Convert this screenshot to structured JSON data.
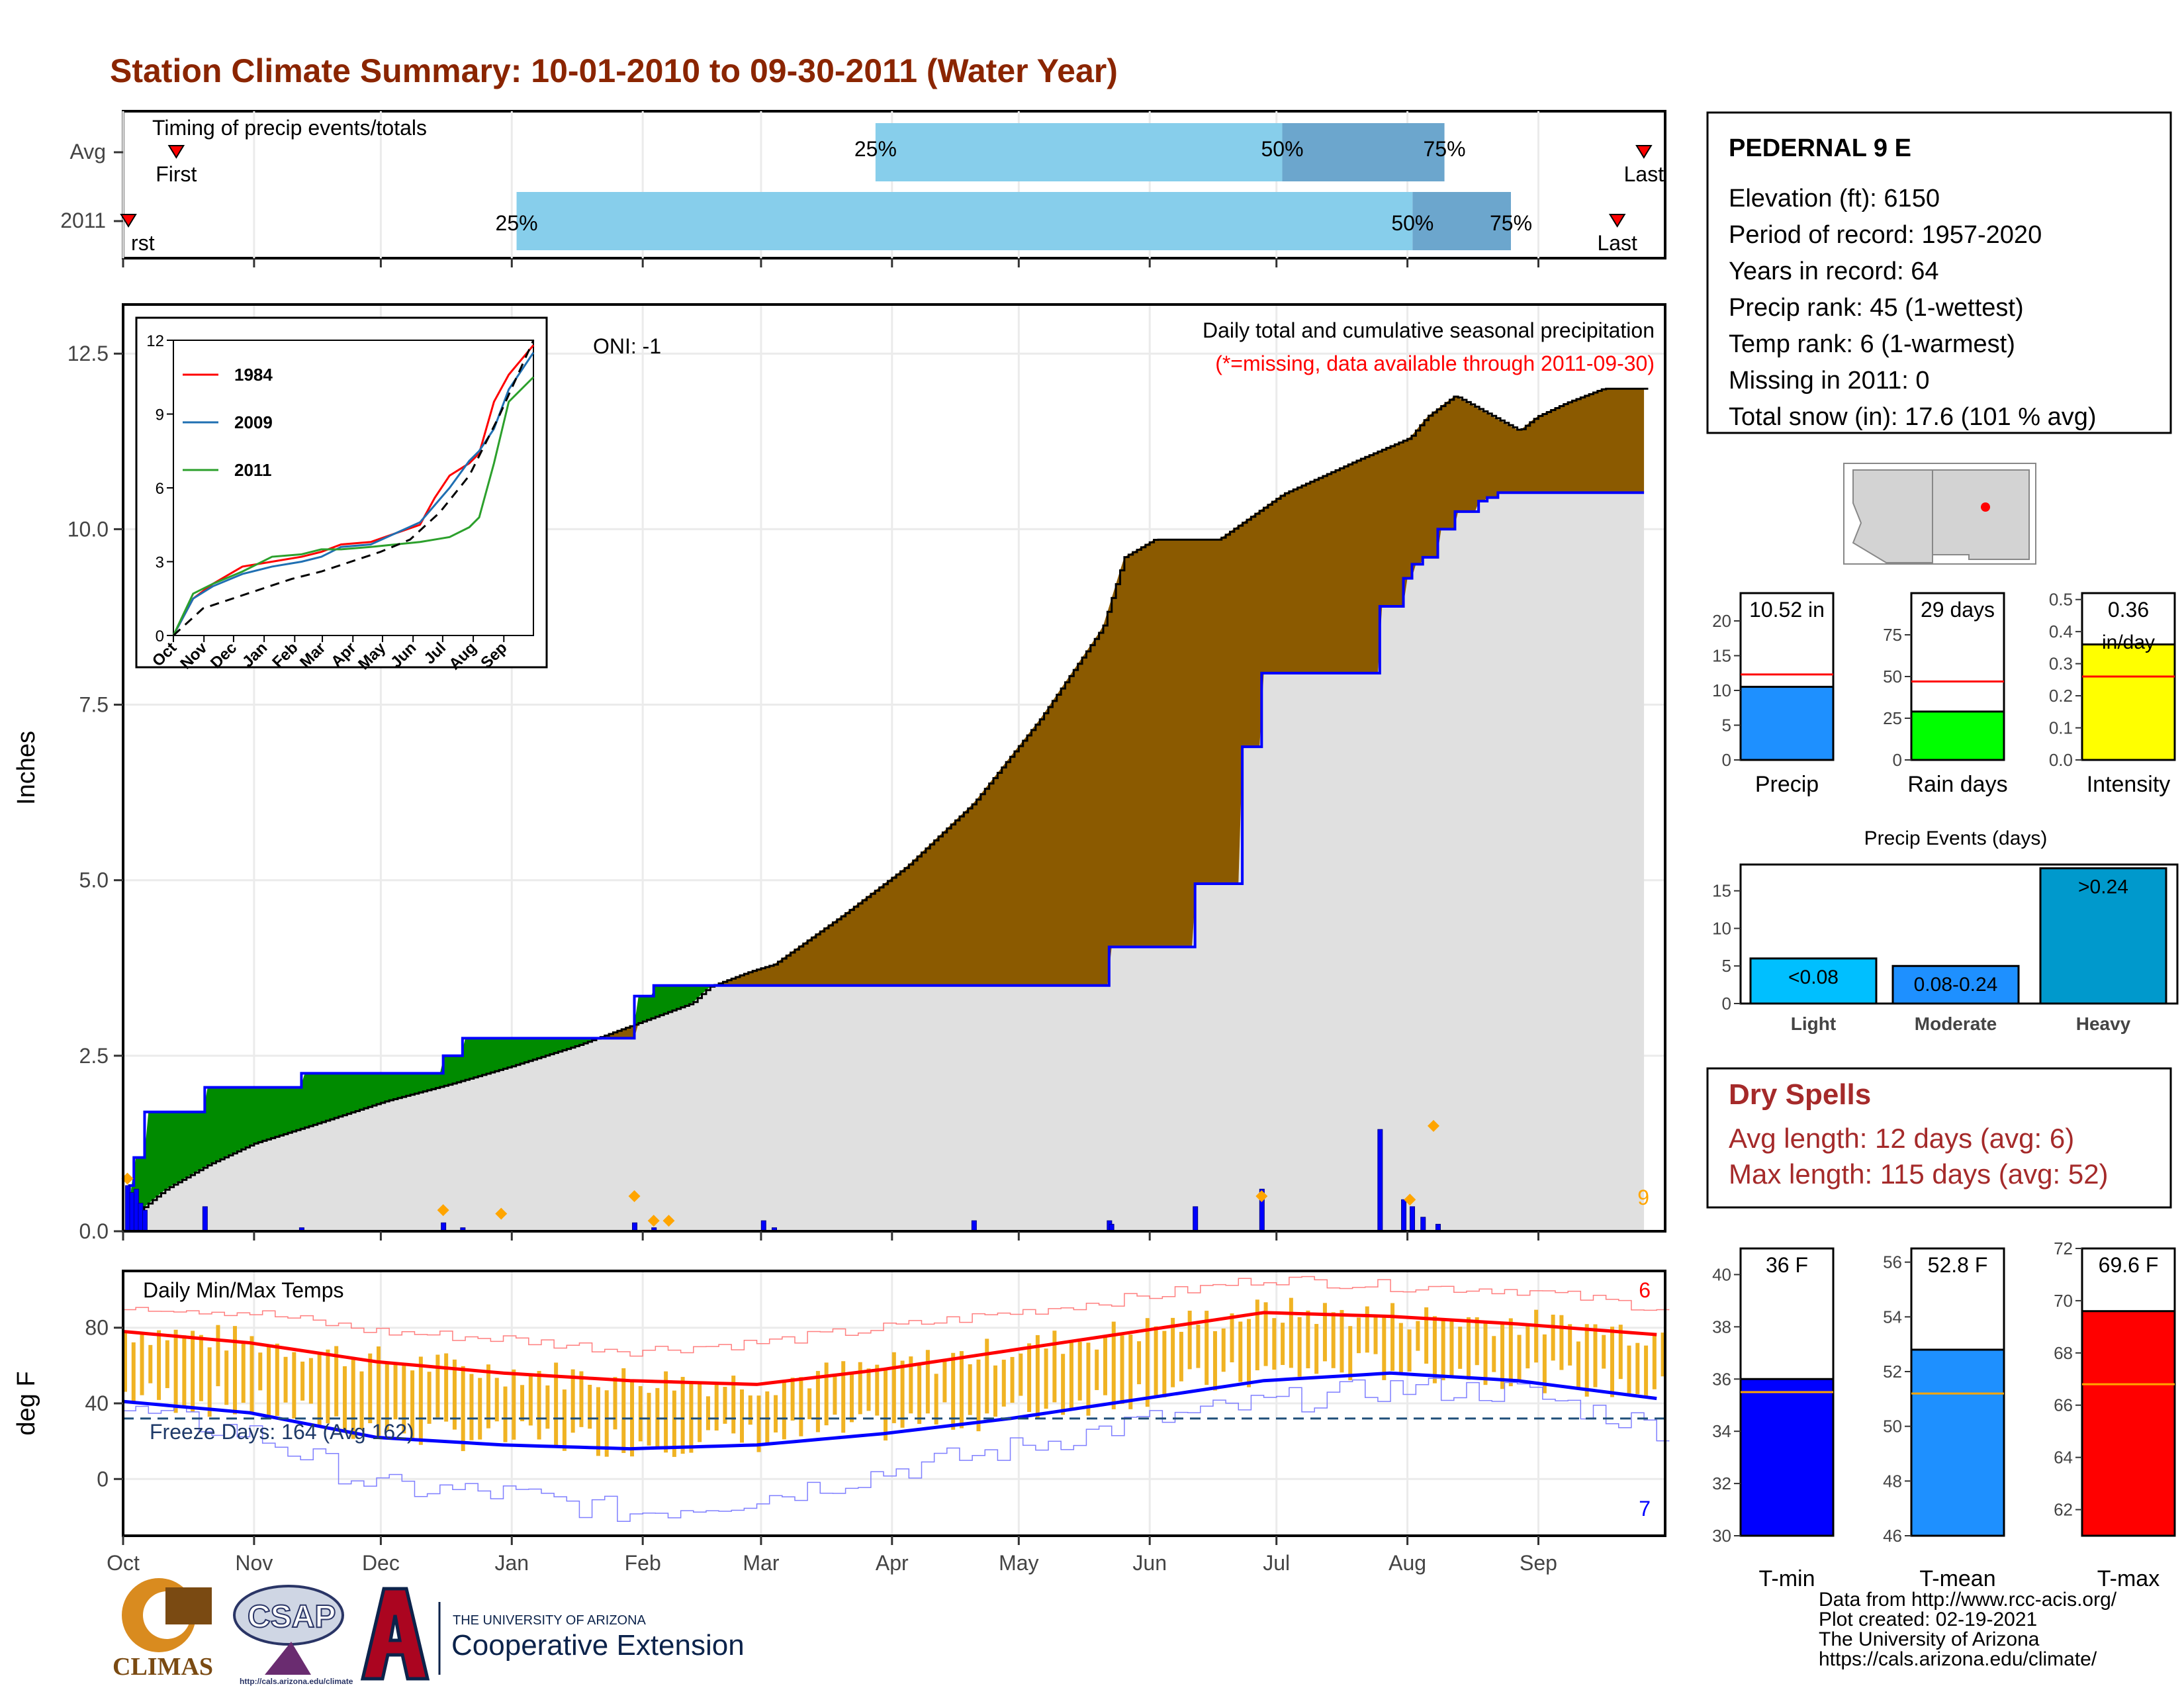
{
  "title": "Station Climate Summary: 10-01-2010 to 09-30-2011 (Water Year)",
  "colors": {
    "title": "#8b2500",
    "pct_light": "#87ceeb",
    "pct_dark": "#6ca6cd",
    "above": "#8b5a00",
    "below": "#008b00",
    "fill": "#e0e0e0",
    "line": "#0000ff",
    "tmax": "#ff0000",
    "tmin": "#0000ff",
    "range": "#f0b323",
    "marker": "#ffa500",
    "dry": "#a52a2a"
  },
  "timing": {
    "label": "Timing of precip events/totals",
    "rows": [
      {
        "name": "Avg",
        "first": 20,
        "p25": 283,
        "p50": 436,
        "p75": 497,
        "last": 572,
        "first_label": "First",
        "last_label": "Last",
        "l25": "25%",
        "l50": "50%",
        "l75": "75%"
      },
      {
        "name": "2011",
        "first": 2,
        "p25": 148,
        "p50": 485,
        "p75": 522,
        "last": 562,
        "first_label": "First",
        "last_label": "Last",
        "l25": "25%",
        "l50": "50%",
        "l75": "75%"
      }
    ]
  },
  "chart_data": [
    {
      "type": "area",
      "name": "cumulative_precip",
      "ylabel": "Inches",
      "ylim": [
        0,
        13.2
      ],
      "yticks": [
        0.0,
        2.5,
        5.0,
        7.5,
        10.0,
        12.5
      ],
      "ytick_labels": [
        "0.0",
        "2.5",
        "5.0",
        "7.5",
        "10.0",
        "12.5"
      ],
      "annotation_title": "Daily total and cumulative seasonal precipitation",
      "annotation_missing": "(*=missing, data available through 2011-09-30)",
      "oni": "ONI: -1",
      "count_label": "9",
      "avg_cumulative": {
        "x": [
          0,
          5,
          10,
          20,
          40,
          61,
          92,
          122,
          153,
          181,
          212,
          243,
          265,
          273,
          292,
          303,
          335,
          365,
          396,
          427,
          456,
          466,
          480,
          510,
          540,
          576,
          599,
          607,
          620,
          650,
          658,
          672,
          689,
          700,
          708
        ],
        "y": [
          0,
          0.15,
          0.35,
          0.6,
          0.95,
          1.25,
          1.55,
          1.85,
          2.1,
          2.35,
          2.65,
          3.0,
          3.25,
          3.48,
          3.7,
          3.8,
          4.5,
          5.2,
          6.1,
          7.3,
          8.6,
          9.6,
          9.85,
          9.85,
          10.5,
          11.0,
          11.3,
          11.6,
          11.9,
          11.4,
          11.6,
          11.8,
          12.0,
          12.0,
          12.0
        ]
      },
      "obs_cumulative": {
        "x": [
          0,
          3,
          5,
          10,
          38,
          83,
          149,
          158,
          238,
          247,
          298,
          303,
          396,
          459,
          499,
          521,
          530,
          585,
          596,
          600,
          605,
          612,
          620,
          631,
          635,
          640,
          659,
          700,
          708
        ],
        "y": [
          0,
          0.65,
          1.05,
          1.7,
          2.05,
          2.25,
          2.5,
          2.75,
          3.35,
          3.5,
          3.5,
          3.5,
          3.5,
          4.05,
          4.95,
          6.9,
          7.95,
          8.9,
          9.3,
          9.5,
          9.6,
          10.0,
          10.25,
          10.4,
          10.45,
          10.52,
          10.52,
          10.52,
          10.52
        ]
      },
      "daily_bars": {
        "x": [
          2,
          4,
          6,
          8,
          10,
          38,
          83,
          149,
          158,
          238,
          247,
          298,
          303,
          396,
          459,
          460,
          499,
          530,
          585,
          596,
          600,
          605,
          612
        ],
        "y": [
          0.65,
          0.55,
          0.6,
          0.4,
          0.3,
          0.35,
          0.05,
          0.12,
          0.05,
          0.12,
          0.05,
          0.15,
          0.05,
          0.15,
          0.15,
          0.1,
          0.35,
          0.6,
          1.45,
          0.45,
          0.35,
          0.2,
          0.1
        ]
      },
      "markers": {
        "x": [
          2,
          149,
          176,
          238,
          247,
          254,
          530,
          599,
          610
        ],
        "y": [
          0.75,
          0.3,
          0.25,
          0.5,
          0.15,
          0.15,
          0.5,
          0.45,
          1.5
        ]
      }
    },
    {
      "type": "line",
      "name": "inset_cumulative",
      "series": [
        {
          "name": "1984",
          "color": "#ff0000",
          "x": [
            0,
            20,
            40,
            70,
            100,
            130,
            150,
            170,
            200,
            250,
            265,
            280,
            300,
            310,
            325,
            340,
            365
          ],
          "y": [
            0,
            1.5,
            2.1,
            2.8,
            3.0,
            3.2,
            3.4,
            3.7,
            3.8,
            4.5,
            5.6,
            6.5,
            7.0,
            7.4,
            9.5,
            10.6,
            11.8
          ]
        },
        {
          "name": "2009",
          "color": "#1f6fb2",
          "x": [
            0,
            20,
            40,
            70,
            100,
            130,
            150,
            170,
            200,
            250,
            265,
            280,
            300,
            310,
            325,
            340,
            365
          ],
          "y": [
            0,
            1.5,
            2.0,
            2.5,
            2.8,
            3.0,
            3.2,
            3.6,
            3.7,
            4.6,
            5.3,
            6.0,
            7.1,
            7.5,
            8.4,
            10.0,
            11.5
          ]
        },
        {
          "name": "2011",
          "color": "#2ca02c",
          "x": [
            0,
            20,
            40,
            70,
            100,
            130,
            150,
            170,
            200,
            250,
            265,
            280,
            300,
            310,
            325,
            340,
            365
          ],
          "y": [
            0,
            1.7,
            2.1,
            2.6,
            3.2,
            3.3,
            3.5,
            3.5,
            3.6,
            3.8,
            3.9,
            4.0,
            4.4,
            4.8,
            7.0,
            9.5,
            10.5
          ]
        },
        {
          "name": "Avg",
          "color": "#000000",
          "x": [
            0,
            30,
            60,
            90,
            120,
            150,
            180,
            210,
            240,
            270,
            300,
            330,
            365
          ],
          "y": [
            0,
            1.1,
            1.5,
            1.9,
            2.3,
            2.6,
            3.0,
            3.4,
            3.9,
            5.0,
            6.5,
            8.9,
            12.0
          ]
        }
      ],
      "ylim": [
        0,
        12
      ],
      "yticks": [
        "0",
        "3",
        "6",
        "9",
        "12"
      ],
      "xticks": [
        "Oct",
        "Nov",
        "Dec",
        "Jan",
        "Feb",
        "Mar",
        "Apr",
        "May",
        "Jun",
        "Jul",
        "Aug",
        "Sep"
      ]
    },
    {
      "type": "line",
      "name": "temps",
      "ylabel": "deg F",
      "ylim": [
        -30,
        110
      ],
      "yticks": [
        "0",
        "40",
        "80"
      ],
      "title": "Daily Min/Max Temps",
      "freeze_label": "Freeze Days: 164 (Avg 162)",
      "freeze_line": 32,
      "count_max": "6",
      "count_min": "7",
      "avg_max": {
        "x": [
          0,
          30,
          60,
          90,
          120,
          150,
          180,
          210,
          240,
          270,
          300,
          330,
          365
        ],
        "y": [
          78,
          72,
          62,
          56,
          52,
          50,
          58,
          68,
          78,
          88,
          86,
          82,
          76
        ]
      },
      "avg_min": {
        "x": [
          0,
          30,
          60,
          90,
          120,
          150,
          180,
          210,
          240,
          270,
          300,
          330,
          365
        ],
        "y": [
          41,
          35,
          22,
          18,
          16,
          18,
          24,
          32,
          42,
          52,
          56,
          52,
          42
        ]
      },
      "max_extreme": {
        "x": [
          0,
          30,
          60,
          90,
          120,
          150,
          180,
          210,
          240,
          270,
          300,
          330,
          365
        ],
        "y": [
          92,
          88,
          78,
          74,
          68,
          72,
          80,
          88,
          96,
          106,
          102,
          100,
          90
        ]
      },
      "min_extreme": {
        "x": [
          0,
          30,
          60,
          90,
          120,
          150,
          180,
          210,
          240,
          270,
          300,
          330,
          365
        ],
        "y": [
          36,
          24,
          -4,
          -8,
          -18,
          -10,
          4,
          16,
          30,
          40,
          48,
          46,
          26
        ]
      }
    },
    {
      "type": "bar",
      "name": "precip_rain_intensity",
      "panels": [
        {
          "label": "Precip",
          "value": 10.52,
          "avg": 12.3,
          "text": "10.52 in",
          "color": "#1e90ff",
          "ymax": 24,
          "ticks": [
            "0",
            "5",
            "10",
            "15",
            "20"
          ]
        },
        {
          "label": "Rain days",
          "value": 29,
          "avg": 47,
          "text": "29 days",
          "color": "#00ff00",
          "ymax": 100,
          "ticks": [
            "0",
            "25",
            "50",
            "75"
          ]
        },
        {
          "label": "Intensity",
          "value": 0.36,
          "avg": 0.26,
          "text": "0.36",
          "unit": "in/day",
          "color": "#ffff00",
          "ymax": 0.52,
          "ticks": [
            "0.0",
            "0.1",
            "0.2",
            "0.3",
            "0.4",
            "0.5"
          ]
        }
      ]
    },
    {
      "type": "bar",
      "name": "precip_events",
      "title": "Precip Events (days)",
      "categories": [
        "Light",
        "Moderate",
        "Heavy"
      ],
      "bar_labels": [
        "<0.08",
        "0.08-0.24",
        ">0.24"
      ],
      "values": [
        6,
        5,
        18
      ],
      "ylim": [
        0,
        18.5
      ],
      "yticks": [
        "0",
        "5",
        "10",
        "15"
      ]
    },
    {
      "type": "bar",
      "name": "temp_bars",
      "panels": [
        {
          "label": "T-min",
          "value": 36,
          "avg": 35.5,
          "text": "36 F",
          "color": "#0000ff",
          "ylim": [
            30,
            41
          ],
          "ticks": [
            "30",
            "32",
            "34",
            "36",
            "38",
            "40"
          ]
        },
        {
          "label": "T-mean",
          "value": 52.8,
          "avg": 51.2,
          "text": "52.8 F",
          "color": "#1e90ff",
          "ylim": [
            46,
            56.5
          ],
          "ticks": [
            "46",
            "48",
            "50",
            "52",
            "54",
            "56"
          ]
        },
        {
          "label": "T-max",
          "value": 69.6,
          "avg": 66.8,
          "text": "69.6 F",
          "color": "#ff0000",
          "ylim": [
            61,
            72
          ],
          "ticks": [
            "62",
            "64",
            "66",
            "68",
            "70",
            "72"
          ]
        }
      ]
    }
  ],
  "months": [
    "Oct",
    "Nov",
    "Dec",
    "Jan",
    "Feb",
    "Mar",
    "Apr",
    "May",
    "Jun",
    "Jul",
    "Aug",
    "Sep"
  ],
  "station": {
    "name": "PEDERNAL 9 E",
    "lines": [
      "Elevation (ft): 6150",
      "Period of record: 1957-2020",
      "Years in record: 64",
      "Precip rank: 45 (1-wettest)",
      "Temp rank: 6 (1-warmest)",
      "Missing in 2011: 0",
      "Total snow (in): 17.6 (101 % avg)"
    ]
  },
  "dry_spells": {
    "title": "Dry Spells",
    "avg": "Avg length: 12 days (avg: 6)",
    "max": "Max length: 115 days (avg: 52)"
  },
  "credits": [
    "Data from http://www.rcc-acis.org/",
    "Plot created: 02-19-2021",
    "The University of Arizona",
    "https://cals.arizona.edu/climate/"
  ],
  "logos": {
    "climas": "CLIMAS",
    "csap": "CSAP",
    "csap_url": "http://cals.arizona.edu/climate",
    "ua_small": "THE UNIVERSITY OF ARIZONA",
    "ua_big": "Cooperative Extension"
  }
}
